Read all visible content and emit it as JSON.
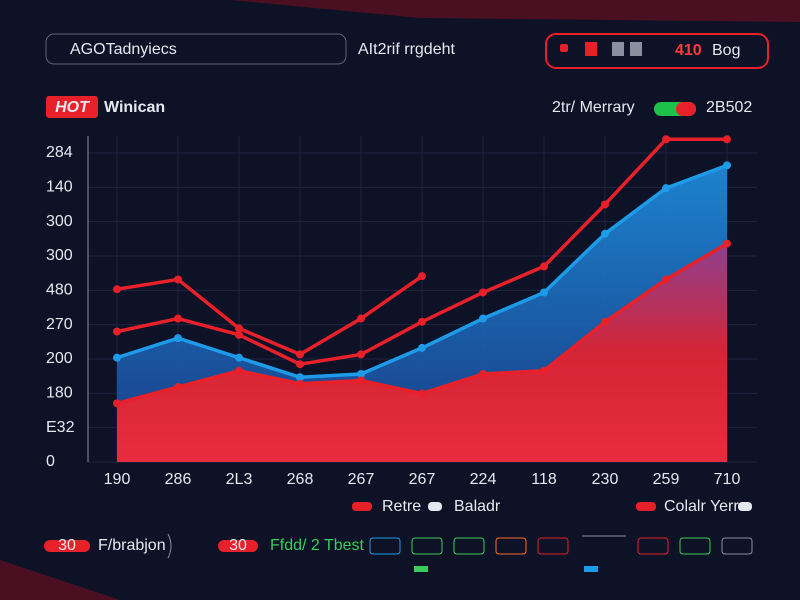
{
  "ui": {
    "search": "AGOTadnyiecs",
    "header_text": "AIt2rif rrgdeht",
    "badge_value": "410",
    "badge_unit": "Bog",
    "hot": "HOT",
    "footer_left_value": "30",
    "footer_left_text": "F/brabjon",
    "footer_mid_value": "30",
    "footer_mid_text": "Ffdd/ 2 Tbest"
  },
  "chart_data": {
    "type": "line",
    "title": "Winican",
    "legend_value": "2B502",
    "categories": [
      "190",
      "286",
      "2L3",
      "268",
      "267",
      "267",
      "224",
      "118",
      "230",
      "259",
      "710"
    ],
    "y_labels": [
      "284",
      "140",
      "300",
      "300",
      "480",
      "270",
      "200",
      "180",
      "E32",
      "0"
    ],
    "ylim": [
      0,
      100
    ],
    "grid": true,
    "series": [
      {
        "name": "Retre",
        "color": "#e8202a",
        "values": [
          53,
          56,
          41,
          33,
          44,
          57,
          null,
          null,
          null,
          null,
          null
        ]
      },
      {
        "name": "Baladr",
        "color": "#1e9be8",
        "area": true,
        "values": [
          32,
          38,
          32,
          26,
          27,
          35,
          44,
          52,
          70,
          84,
          91
        ]
      },
      {
        "name": "Colalr Yerr",
        "color": "#e8202a",
        "values": [
          40,
          44,
          39,
          30,
          33,
          43,
          52,
          60,
          79,
          99,
          99
        ]
      },
      {
        "name": "2tr/ Merrary",
        "color": "#e8202a",
        "area": true,
        "values": [
          18,
          23,
          28,
          24,
          25,
          21,
          27,
          28,
          43,
          56,
          67
        ]
      }
    ]
  }
}
